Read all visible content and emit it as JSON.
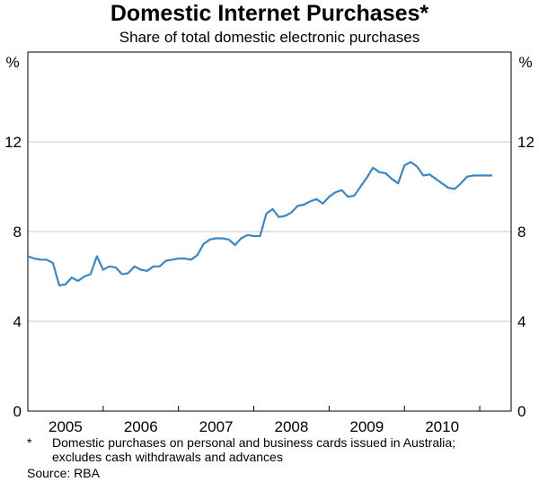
{
  "title": "Domestic Internet Purchases*",
  "subtitle": "Share of total domestic electronic purchases",
  "footnote": {
    "marker": "*",
    "lines": [
      "Domestic purchases on personal and business cards issued in Australia;",
      "excludes cash withdrawals and advances"
    ]
  },
  "source": "Source: RBA",
  "chart_data": {
    "type": "line",
    "ylabel_left": "%",
    "ylabel_right": "%",
    "ylim": [
      0,
      16
    ],
    "yticks": [
      0,
      4,
      8,
      12
    ],
    "xlim": [
      2004.5,
      2010.917
    ],
    "xtick_labels": [
      {
        "label": "2005",
        "x": 2005.0
      },
      {
        "label": "2006",
        "x": 2006.0
      },
      {
        "label": "2007",
        "x": 2007.0
      },
      {
        "label": "2008",
        "x": 2008.0
      },
      {
        "label": "2009",
        "x": 2009.0
      },
      {
        "label": "2010",
        "x": 2010.0
      }
    ],
    "year_boundaries": [
      2005.5,
      2006.5,
      2007.5,
      2008.5,
      2009.5,
      2010.5
    ],
    "grid": true,
    "line_color": "#3a87c8",
    "series": [
      {
        "x": [
          2004.5,
          2004.583,
          2004.667,
          2004.75,
          2004.833,
          2004.917,
          2005.0,
          2005.083,
          2005.167,
          2005.25,
          2005.333,
          2005.417,
          2005.5,
          2005.583,
          2005.667,
          2005.75,
          2005.833,
          2005.917,
          2006.0,
          2006.083,
          2006.167,
          2006.25,
          2006.333,
          2006.417,
          2006.5,
          2006.583,
          2006.667,
          2006.75,
          2006.833,
          2006.917,
          2007.0,
          2007.083,
          2007.167,
          2007.25,
          2007.333,
          2007.417,
          2007.5,
          2007.583,
          2007.667,
          2007.75,
          2007.833,
          2007.917,
          2008.0,
          2008.083,
          2008.167,
          2008.25,
          2008.333,
          2008.417,
          2008.5,
          2008.583,
          2008.667,
          2008.75,
          2008.833,
          2008.917,
          2009.0,
          2009.083,
          2009.167,
          2009.25,
          2009.333,
          2009.417,
          2009.5,
          2009.583,
          2009.667,
          2009.75,
          2009.833,
          2009.917,
          2010.0,
          2010.083,
          2010.167,
          2010.25,
          2010.333,
          2010.417,
          2010.5,
          2010.583,
          2010.667
        ],
        "values": [
          6.9,
          6.8,
          6.75,
          6.75,
          6.6,
          5.6,
          5.65,
          5.95,
          5.8,
          6.0,
          6.1,
          6.9,
          6.3,
          6.45,
          6.4,
          6.1,
          6.15,
          6.45,
          6.3,
          6.25,
          6.45,
          6.45,
          6.7,
          6.75,
          6.8,
          6.8,
          6.75,
          6.95,
          7.45,
          7.65,
          7.7,
          7.7,
          7.65,
          7.4,
          7.7,
          7.85,
          7.8,
          7.8,
          8.8,
          9.0,
          8.65,
          8.7,
          8.85,
          9.15,
          9.2,
          9.35,
          9.45,
          9.25,
          9.55,
          9.75,
          9.85,
          9.55,
          9.6,
          10.0,
          10.4,
          10.85,
          10.65,
          10.6,
          10.35,
          10.15,
          10.95,
          11.1,
          10.9,
          10.5,
          10.55,
          10.35,
          10.15,
          9.95,
          9.9,
          10.15,
          10.45,
          10.5,
          10.5,
          10.5,
          10.5
        ]
      }
    ]
  }
}
